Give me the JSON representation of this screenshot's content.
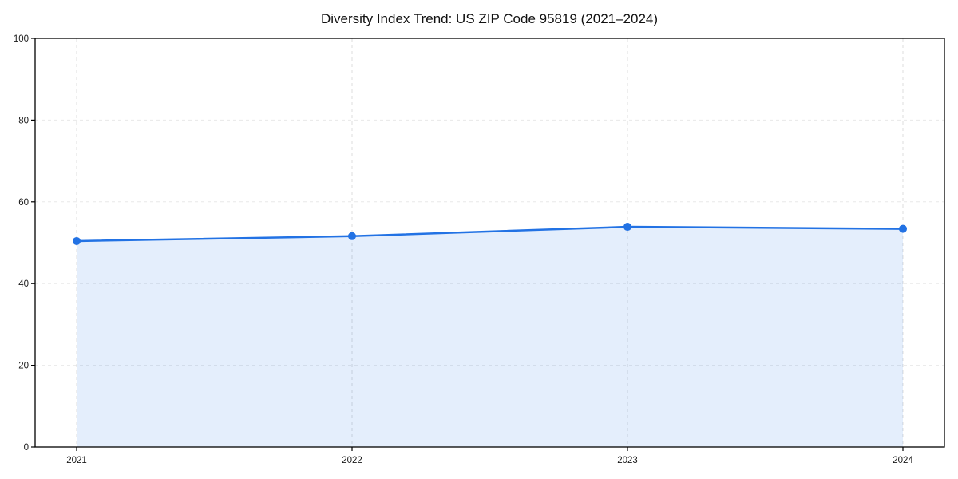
{
  "chart_data": {
    "type": "line",
    "title": "Diversity Index Trend: US ZIP Code 95819 (2021–2024)",
    "x": [
      "2021",
      "2022",
      "2023",
      "2024"
    ],
    "series": [
      {
        "name": "Diversity Index",
        "values": [
          50.4,
          51.6,
          53.9,
          53.4
        ]
      }
    ],
    "xlabel": "",
    "ylabel": "",
    "ylim": [
      0,
      100
    ],
    "yticks": [
      0,
      20,
      40,
      60,
      80,
      100
    ],
    "grid": "dashed-both-axes",
    "legend": "none",
    "area_fill": true,
    "fill_opacity": 0.12,
    "colors": {
      "line": "#2272e4",
      "marker": "#2272e4",
      "grid": "#d9d9d9",
      "spine": "#000000",
      "text": "#1a1a1a",
      "title": "#111111",
      "background": "#ffffff"
    }
  }
}
